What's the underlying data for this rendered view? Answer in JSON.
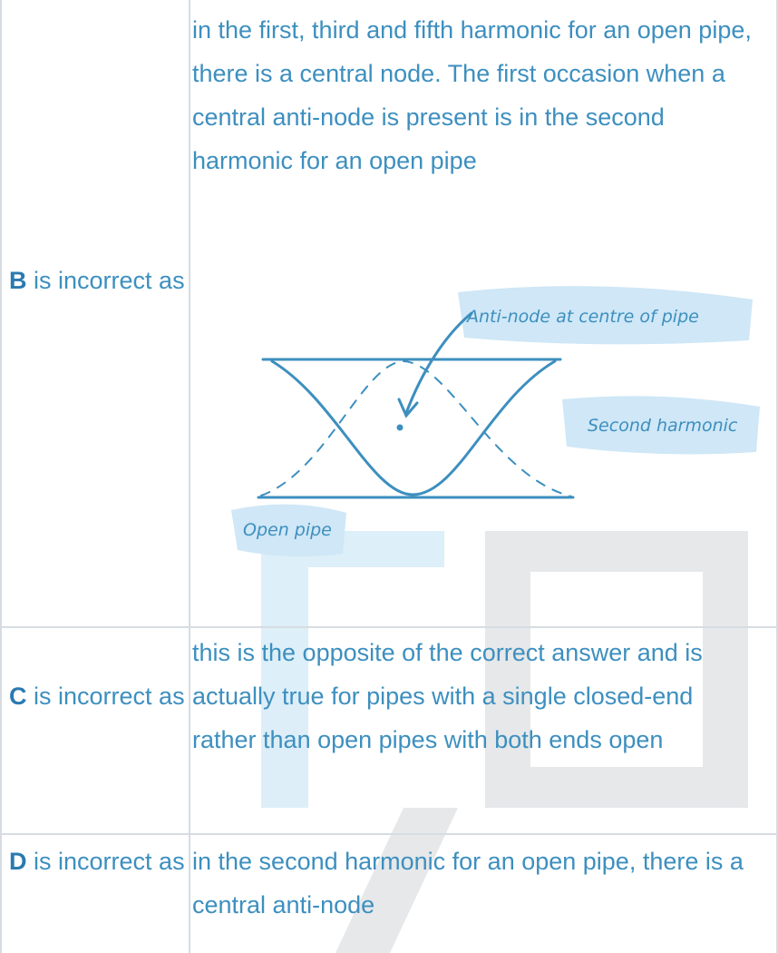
{
  "table": {
    "rows": [
      {
        "letter": "B",
        "label": "is incorrect as",
        "text": "in the first, third and fifth harmonic for an open pipe, there is a central node. The first occasion when a central anti-node is present is in the second harmonic for an open pipe"
      },
      {
        "letter": "C",
        "label": "is incorrect as",
        "text": "this is the opposite of the correct answer and is actually true for pipes with a single closed-end rather than open pipes with both ends open"
      },
      {
        "letter": "D",
        "label": "is incorrect as",
        "text": "in the second harmonic for an open pipe, there is a central anti-node"
      }
    ]
  },
  "diagram": {
    "annotation": "Anti-node at centre of pipe",
    "harmonic_label": "Second harmonic",
    "pipe_label": "Open pipe"
  }
}
